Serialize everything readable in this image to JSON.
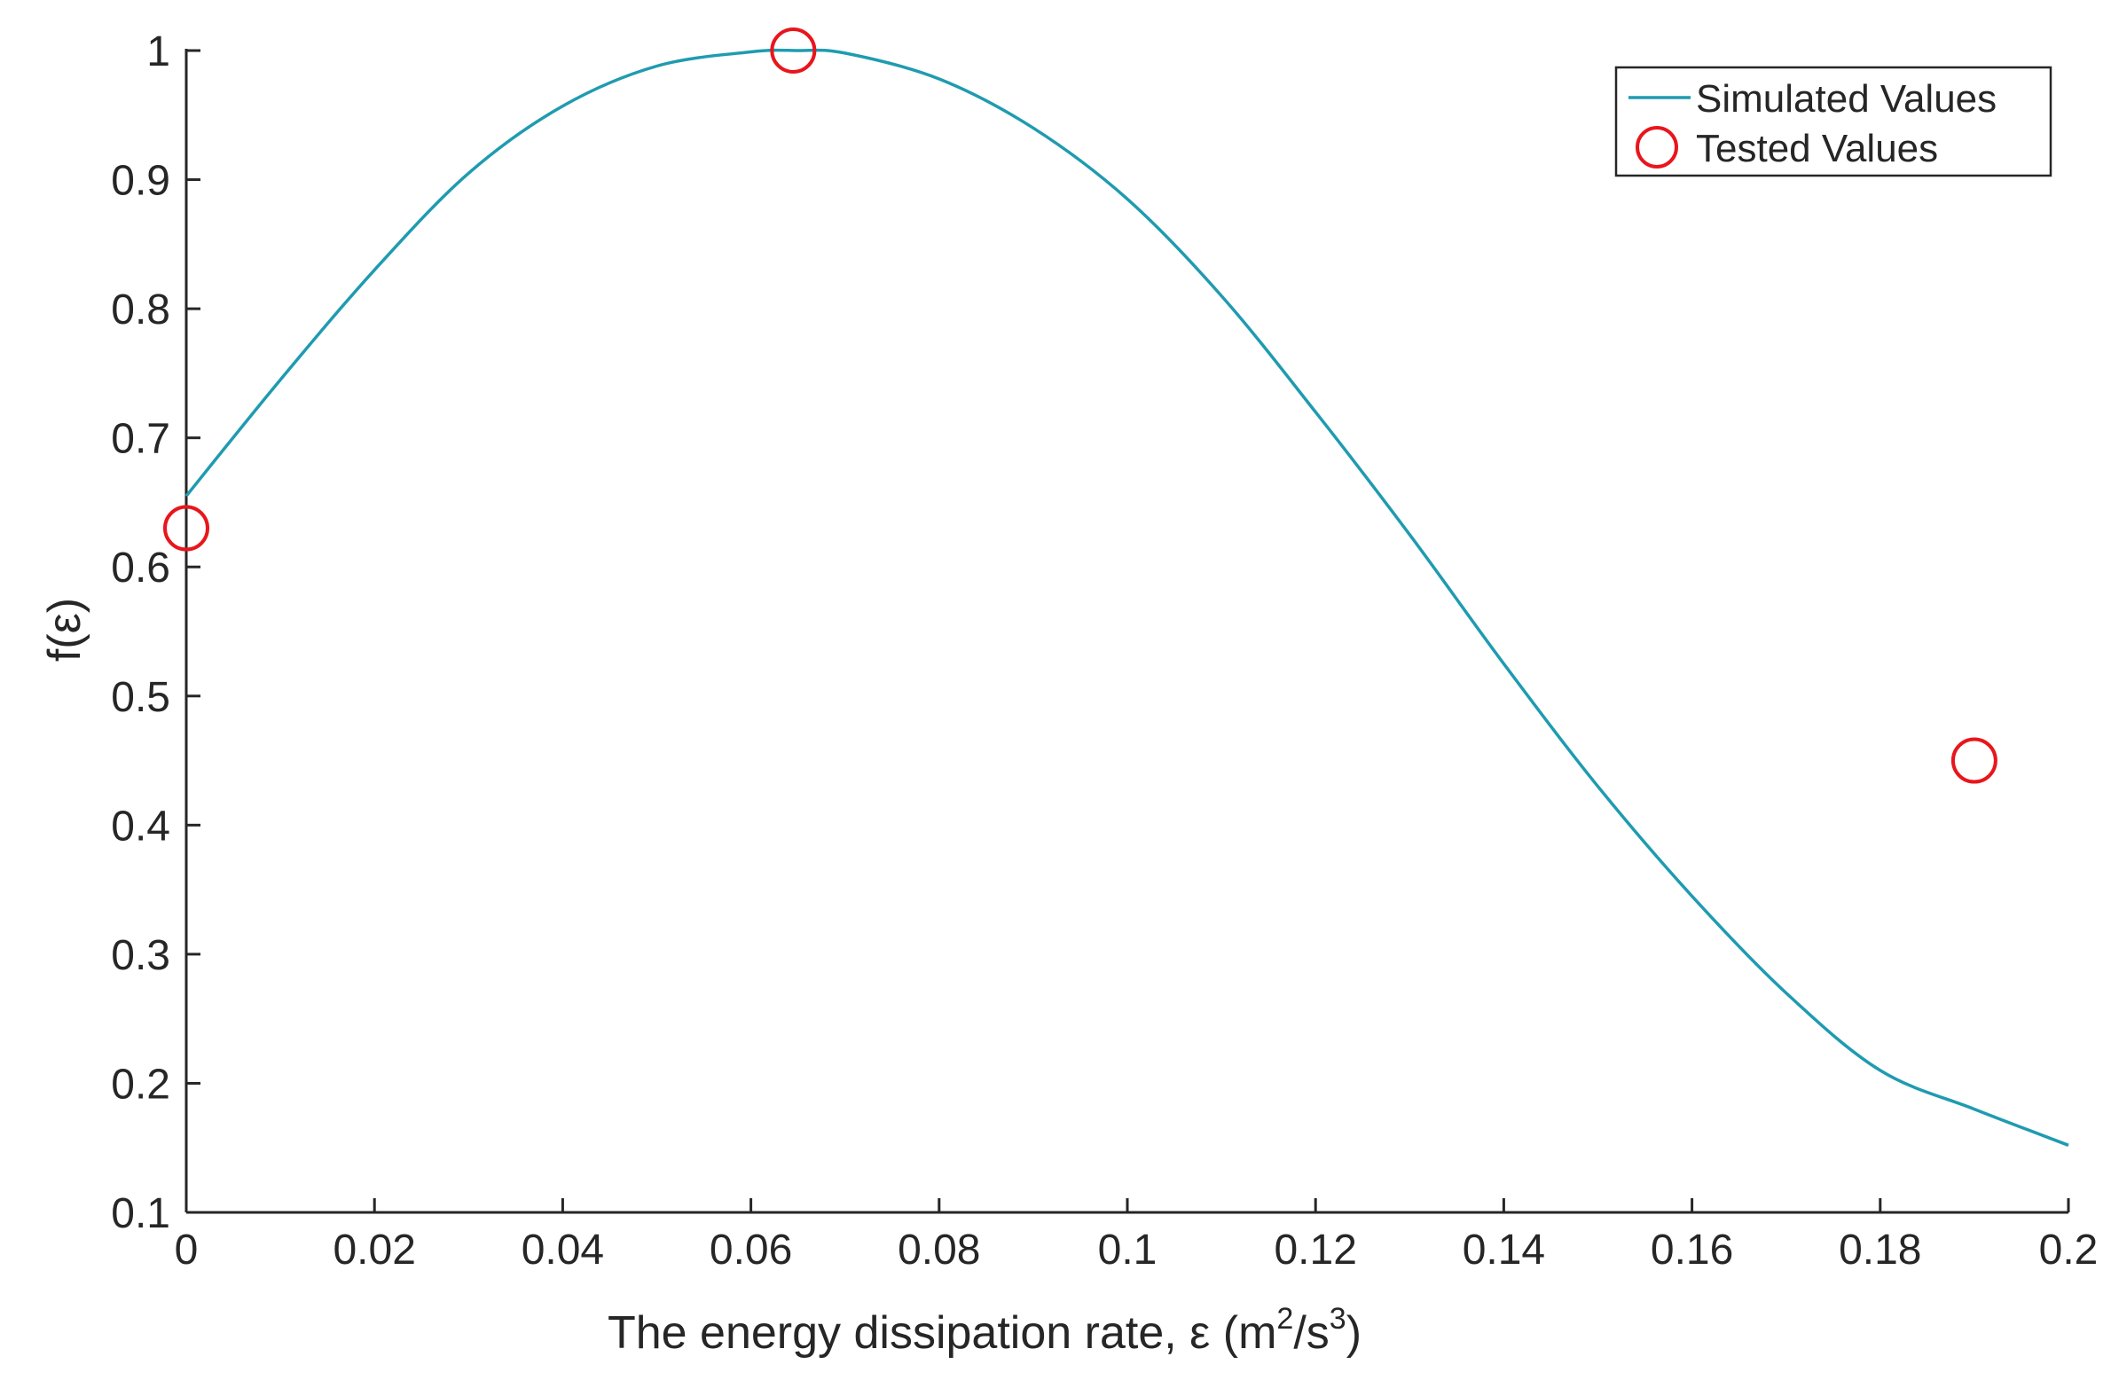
{
  "chart_data": {
    "type": "line",
    "title": "",
    "xlabel": {
      "prefix": "The energy dissipation rate, ε (m",
      "sup1": "2",
      "middle": "/s",
      "sup2": "3",
      "suffix": ")"
    },
    "ylabel": "f(ε)",
    "xlim": [
      0,
      0.2
    ],
    "ylim": [
      0.1,
      1
    ],
    "x_ticks": [
      0,
      0.02,
      0.04,
      0.06,
      0.08,
      0.1,
      0.12,
      0.14,
      0.16,
      0.18,
      0.2
    ],
    "x_tick_labels": [
      "0",
      "0.02",
      "0.04",
      "0.06",
      "0.08",
      "0.1",
      "0.12",
      "0.14",
      "0.16",
      "0.18",
      "0.2"
    ],
    "y_ticks": [
      0.1,
      0.2,
      0.3,
      0.4,
      0.5,
      0.6,
      0.7,
      0.8,
      0.9,
      1
    ],
    "y_tick_labels": [
      "0.1",
      "0.2",
      "0.3",
      "0.4",
      "0.5",
      "0.6",
      "0.7",
      "0.8",
      "0.9",
      "1"
    ],
    "grid": false,
    "legend_position": "top-right",
    "series": [
      {
        "name": "Simulated Values",
        "kind": "line",
        "color": "#1f9bb0",
        "x": [
          0,
          0.01,
          0.02,
          0.03,
          0.04,
          0.05,
          0.06,
          0.065,
          0.07,
          0.08,
          0.09,
          0.1,
          0.11,
          0.12,
          0.13,
          0.14,
          0.15,
          0.16,
          0.17,
          0.18,
          0.19,
          0.2
        ],
        "y": [
          0.655,
          0.745,
          0.83,
          0.905,
          0.957,
          0.988,
          0.999,
          1.0,
          0.998,
          0.978,
          0.94,
          0.885,
          0.81,
          0.72,
          0.625,
          0.525,
          0.43,
          0.345,
          0.27,
          0.21,
          0.18,
          0.152
        ]
      },
      {
        "name": "Tested Values",
        "kind": "scatter",
        "marker": "circle",
        "color": "#e8161c",
        "x": [
          0,
          0.0645,
          0.19
        ],
        "y": [
          0.63,
          1.0,
          0.45
        ]
      }
    ]
  }
}
